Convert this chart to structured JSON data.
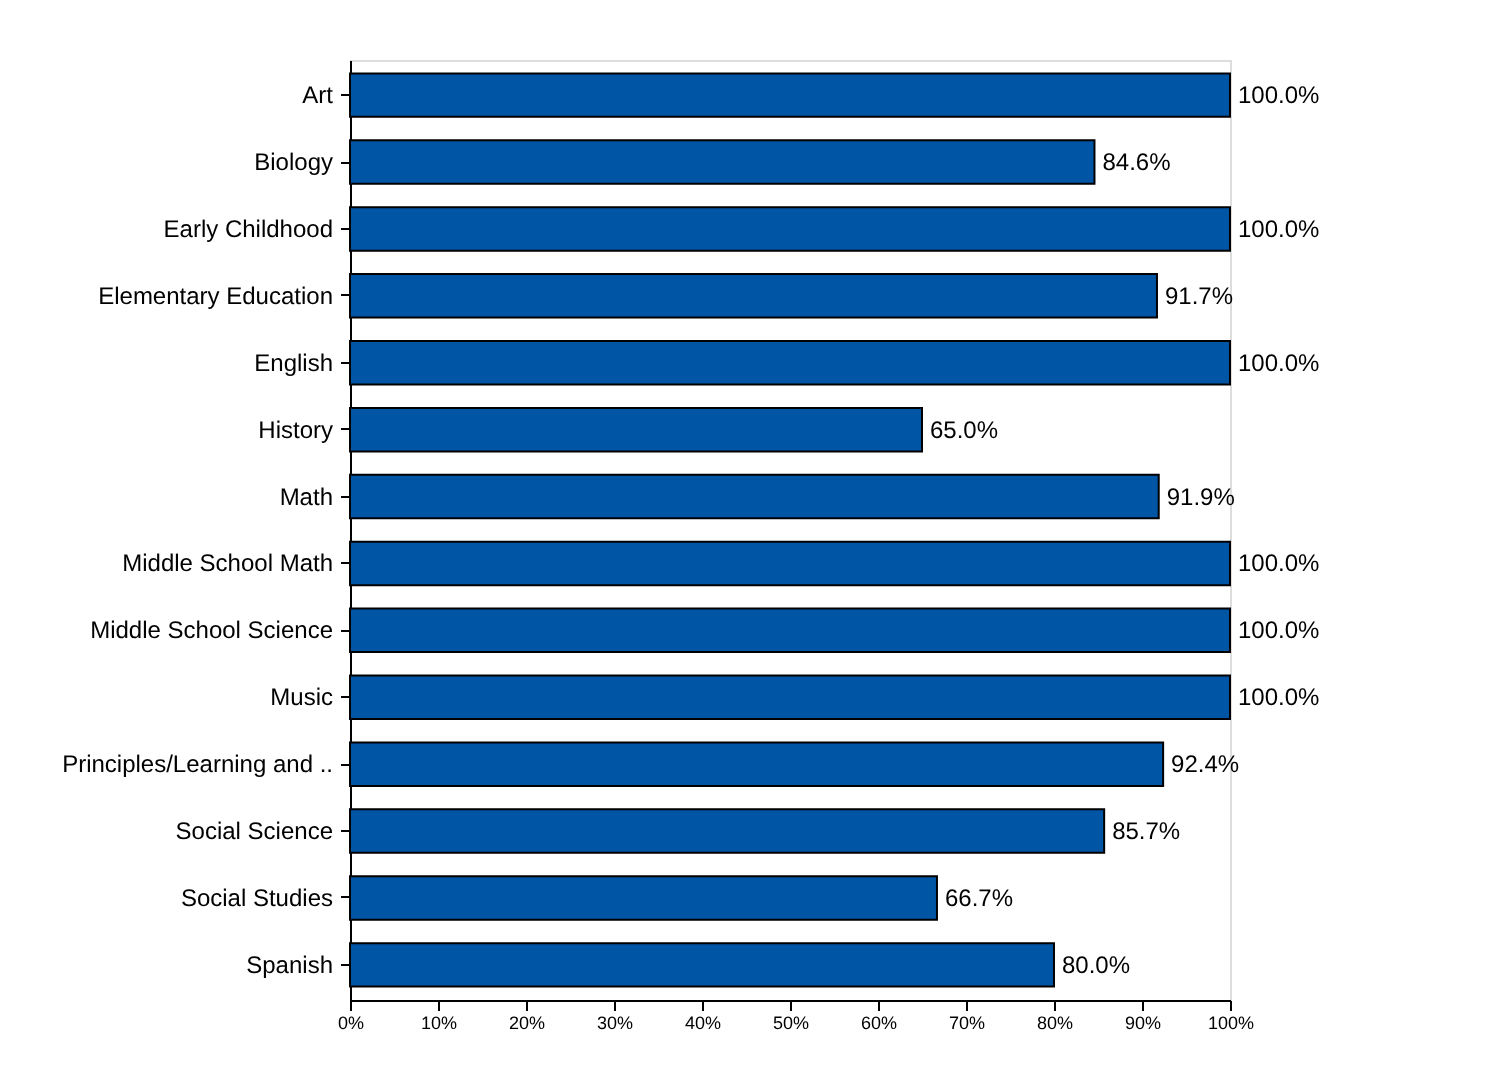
{
  "chart_data": {
    "type": "bar",
    "orientation": "horizontal",
    "categories": [
      "Art",
      "Biology",
      "Early Childhood",
      "Elementary Education",
      "English",
      "History",
      "Math",
      "Middle School Math",
      "Middle School Science",
      "Music",
      "Principles/Learning and ..",
      "Social Science",
      "Social Studies",
      "Spanish"
    ],
    "values": [
      100.0,
      84.6,
      100.0,
      91.7,
      100.0,
      65.0,
      91.9,
      100.0,
      100.0,
      100.0,
      92.4,
      85.7,
      66.7,
      80.0
    ],
    "value_labels": [
      "100.0%",
      "84.6%",
      "100.0%",
      "91.7%",
      "100.0%",
      "65.0%",
      "91.9%",
      "100.0%",
      "100.0%",
      "100.0%",
      "92.4%",
      "85.7%",
      "66.7%",
      "80.0%"
    ],
    "color": "#0055a5",
    "xlim": [
      0,
      100
    ],
    "xticks": [
      {
        "value": 0,
        "label": "0%"
      },
      {
        "value": 10,
        "label": "10%"
      },
      {
        "value": 20,
        "label": "20%"
      },
      {
        "value": 30,
        "label": "30%"
      },
      {
        "value": 40,
        "label": "40%"
      },
      {
        "value": 50,
        "label": "50%"
      },
      {
        "value": 60,
        "label": "60%"
      },
      {
        "value": 70,
        "label": "70%"
      },
      {
        "value": 80,
        "label": "80%"
      },
      {
        "value": 90,
        "label": "90%"
      },
      {
        "value": 100,
        "label": "100%"
      }
    ],
    "grid": false
  }
}
